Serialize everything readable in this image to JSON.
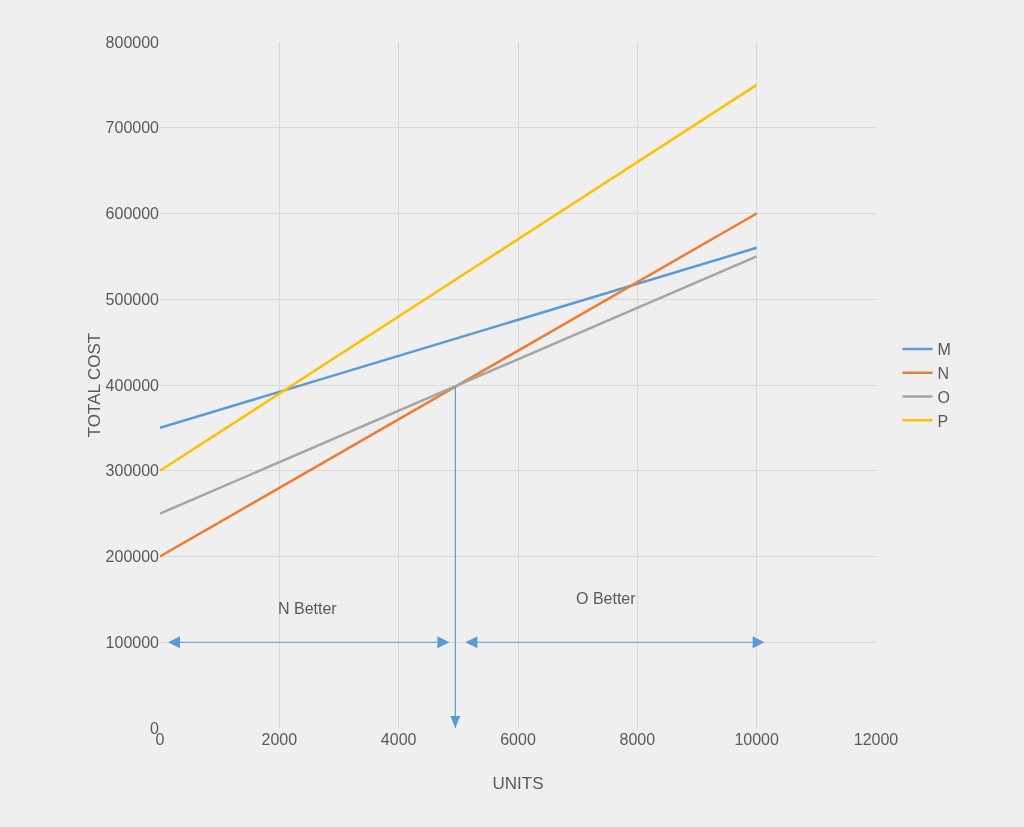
{
  "chart_data": {
    "type": "line",
    "xlabel": "UNITS",
    "ylabel": "TOTAL COST",
    "x": [
      0,
      10000
    ],
    "series": [
      {
        "name": "M",
        "color": "#5b9bd5",
        "values": [
          350000,
          560000
        ]
      },
      {
        "name": "N",
        "color": "#ed7d31",
        "values": [
          200000,
          600000
        ]
      },
      {
        "name": "O",
        "color": "#a5a5a5",
        "values": [
          250000,
          550000
        ]
      },
      {
        "name": "P",
        "color": "#ffc000",
        "values": [
          300000,
          750000
        ]
      }
    ],
    "xlim": [
      0,
      12000
    ],
    "xticks": [
      0,
      2000,
      4000,
      6000,
      8000,
      10000,
      12000
    ],
    "ylim": [
      0,
      800000
    ],
    "yticks": [
      0,
      100000,
      200000,
      300000,
      400000,
      500000,
      600000,
      700000,
      800000
    ],
    "ref_lines": [
      {
        "axis": "x",
        "value": 4950,
        "color": "#5b9bd5"
      }
    ],
    "annotations": [
      "N Better",
      "O Better"
    ],
    "grid": true,
    "legend": "right",
    "marker": "none",
    "line_style": "solid"
  }
}
